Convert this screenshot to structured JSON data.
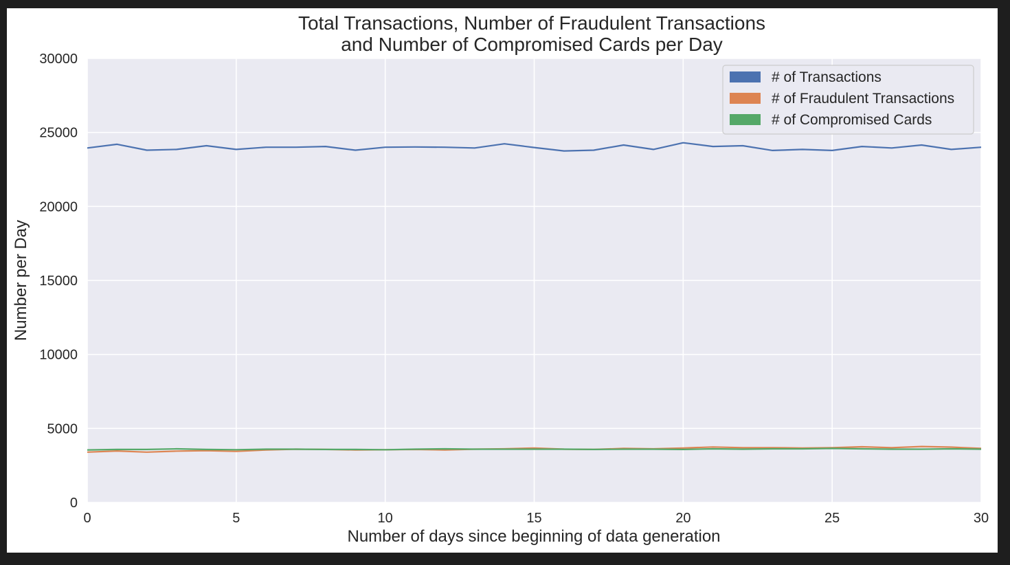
{
  "chart_data": {
    "type": "line",
    "title": [
      "Total Transactions, Number of Fraudulent Transactions",
      "and Number of Compromised Cards per Day"
    ],
    "xlabel": "Number of days since beginning of data generation",
    "ylabel": "Number per Day",
    "xlim": [
      0,
      30
    ],
    "ylim": [
      0,
      30000
    ],
    "xticks": [
      0,
      5,
      10,
      15,
      20,
      25,
      30
    ],
    "yticks": [
      0,
      5000,
      10000,
      15000,
      20000,
      25000,
      30000
    ],
    "grid": true,
    "legend_position": "top-right",
    "x": [
      0,
      1,
      2,
      3,
      4,
      5,
      6,
      7,
      8,
      9,
      10,
      11,
      12,
      13,
      14,
      15,
      16,
      17,
      18,
      19,
      20,
      21,
      22,
      23,
      24,
      25,
      26,
      27,
      28,
      29,
      30
    ],
    "series": [
      {
        "name": "# of Transactions",
        "color": "#4c72b0",
        "values": [
          23950,
          24200,
          23800,
          23850,
          24100,
          23850,
          24000,
          24000,
          24050,
          23800,
          24000,
          24020,
          24000,
          23950,
          24230,
          23980,
          23750,
          23800,
          24150,
          23850,
          24300,
          24050,
          24100,
          23780,
          23850,
          23780,
          24050,
          23950,
          24150,
          23850,
          24000
        ]
      },
      {
        "name": "# of Fraudulent Transactions",
        "color": "#dd8452",
        "values": [
          3400,
          3480,
          3400,
          3470,
          3500,
          3450,
          3550,
          3600,
          3580,
          3550,
          3560,
          3580,
          3550,
          3600,
          3620,
          3680,
          3600,
          3580,
          3650,
          3620,
          3680,
          3750,
          3700,
          3700,
          3680,
          3700,
          3760,
          3700,
          3780,
          3740,
          3650
        ]
      },
      {
        "name": "# of Compromised Cards",
        "color": "#55a868",
        "values": [
          3550,
          3580,
          3580,
          3620,
          3580,
          3560,
          3600,
          3600,
          3580,
          3580,
          3560,
          3600,
          3620,
          3600,
          3600,
          3600,
          3600,
          3580,
          3600,
          3600,
          3580,
          3620,
          3600,
          3620,
          3620,
          3650,
          3620,
          3600,
          3600,
          3620,
          3600
        ]
      }
    ]
  }
}
